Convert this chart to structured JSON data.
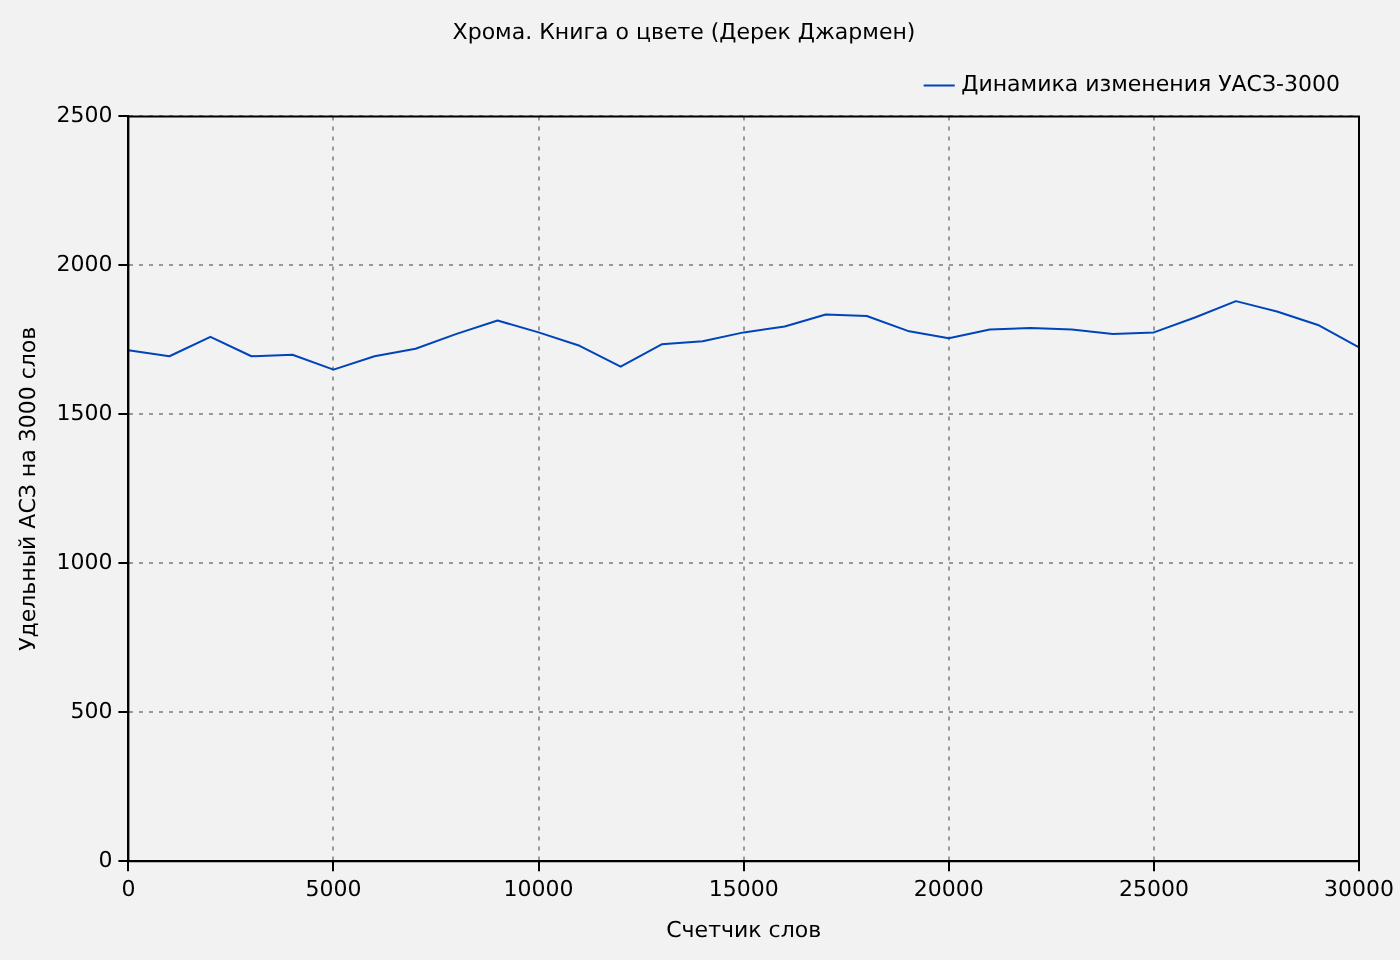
{
  "chart_data": {
    "type": "line",
    "title": "Хрома. Книга о цвете (Дерек Джармен)",
    "xlabel": "Счетчик слов",
    "ylabel": "Удельный АСЗ на 3000 слов",
    "x": [
      0,
      1000,
      2000,
      3000,
      4000,
      5000,
      6000,
      7000,
      8000,
      9000,
      10000,
      11000,
      12000,
      13000,
      14000,
      15000,
      16000,
      17000,
      18000,
      19000,
      20000,
      21000,
      22000,
      23000,
      24000,
      25000,
      26000,
      27000,
      28000,
      29000,
      30000
    ],
    "series": [
      {
        "name": "Динамика изменения УАСЗ-3000",
        "color": "#0044bb",
        "values": [
          1715,
          1695,
          1760,
          1695,
          1700,
          1650,
          1695,
          1720,
          1770,
          1815,
          1775,
          1730,
          1660,
          1735,
          1745,
          1775,
          1795,
          1835,
          1830,
          1780,
          1755,
          1785,
          1790,
          1785,
          1770,
          1775,
          1825,
          1880,
          1845,
          1800,
          1725
        ]
      }
    ],
    "xlim": [
      0,
      30000
    ],
    "xticks": [
      0,
      5000,
      10000,
      15000,
      20000,
      25000,
      30000
    ],
    "ylim": [
      0,
      2500
    ],
    "yticks": [
      0,
      500,
      1000,
      1500,
      2000,
      2500
    ],
    "grid": true,
    "legend": "top right",
    "marker": "none",
    "line_style": "solid"
  }
}
